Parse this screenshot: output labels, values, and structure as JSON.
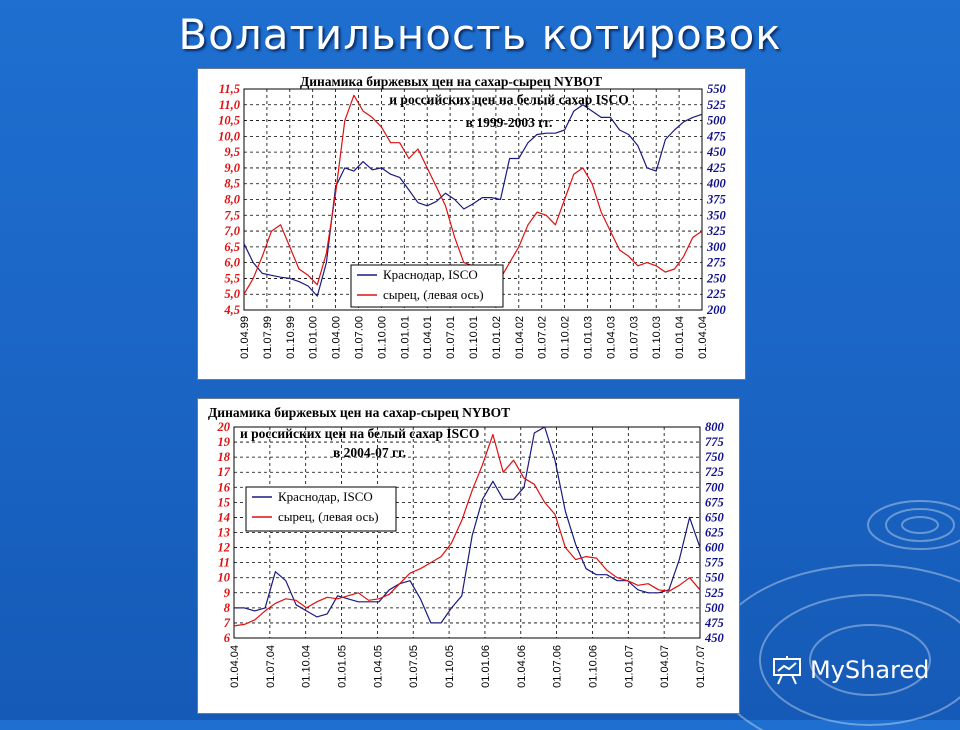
{
  "slide": {
    "title": "Волатильность котировок"
  },
  "logo": {
    "text": "MyShared"
  },
  "colors": {
    "background": "#1e6fd0",
    "krasnodar": "#1a1a80",
    "raw": "#e01010",
    "grid": "#000000"
  },
  "chart_data": [
    {
      "type": "line",
      "title": [
        "Динамика биржевых цен на сахар-сырец NYBOT",
        "и российских цен на белый сахар ISCO",
        "в 1999-2003 гг."
      ],
      "x_tick_labels": [
        "01.04.99",
        "01.07.99",
        "01.10.99",
        "01.01.00",
        "01.04.00",
        "01.07.00",
        "01.10.00",
        "01.01.01",
        "01.04.01",
        "01.07.01",
        "01.10.01",
        "01.01.02",
        "01.04.02",
        "01.07.02",
        "01.10.02",
        "01.01.03",
        "01.04.03",
        "01.07.03",
        "01.10.03",
        "01.01.04",
        "01.04.04"
      ],
      "y_left_ticks": [
        "4,5",
        "5,0",
        "5,5",
        "6,0",
        "6,5",
        "7,0",
        "7,5",
        "8,0",
        "8,5",
        "9,0",
        "9,5",
        "10,0",
        "10,5",
        "11,0",
        "11,5"
      ],
      "y_left_range": [
        4.5,
        11.5
      ],
      "y_right_ticks": [
        "200",
        "225",
        "250",
        "275",
        "300",
        "325",
        "350",
        "375",
        "400",
        "425",
        "450",
        "475",
        "500",
        "525",
        "550"
      ],
      "y_right_range": [
        200,
        550
      ],
      "grid": true,
      "legend_position": "bottom-left",
      "series": [
        {
          "name": "Краснодар, ISCO",
          "axis": "right",
          "color": "#1a1a80",
          "values": [
            305,
            275,
            258,
            255,
            252,
            250,
            245,
            238,
            222,
            275,
            395,
            425,
            420,
            435,
            422,
            425,
            415,
            410,
            390,
            370,
            365,
            372,
            385,
            375,
            360,
            368,
            378,
            378,
            375,
            440,
            440,
            465,
            478,
            480,
            480,
            485,
            515,
            525,
            515,
            505,
            505,
            485,
            478,
            460,
            425,
            420,
            470,
            485,
            498,
            505,
            510
          ]
        },
        {
          "name": "сырец, (левая ось)",
          "axis": "left",
          "color": "#e01010",
          "values": [
            5.0,
            5.5,
            6.2,
            7.0,
            7.2,
            6.5,
            5.8,
            5.6,
            5.3,
            6.3,
            8.2,
            10.5,
            11.3,
            10.8,
            10.6,
            10.3,
            9.8,
            9.8,
            9.3,
            9.6,
            9.0,
            8.4,
            7.8,
            6.8,
            6.0,
            5.9,
            5.6,
            5.6,
            5.5,
            6.0,
            6.5,
            7.2,
            7.6,
            7.5,
            7.2,
            8.0,
            8.8,
            9.0,
            8.5,
            7.6,
            7.0,
            6.4,
            6.2,
            5.9,
            6.0,
            5.9,
            5.7,
            5.8,
            6.2,
            6.8,
            7.0
          ]
        }
      ]
    },
    {
      "type": "line",
      "title": [
        "Динамика биржевых цен на сахар-сырец NYBOT",
        "и российских цен на белый сахар ISCO",
        "в 2004-07 гг."
      ],
      "x_tick_labels": [
        "01.04.04",
        "01.07.04",
        "01.10.04",
        "01.01.05",
        "01.04.05",
        "01.07.05",
        "01.10.05",
        "01.01.06",
        "01.04.06",
        "01.07.06",
        "01.10.06",
        "01.01.07",
        "01.04.07",
        "01.07.07"
      ],
      "y_left_ticks": [
        "6",
        "7",
        "8",
        "9",
        "10",
        "11",
        "12",
        "13",
        "14",
        "15",
        "16",
        "17",
        "18",
        "19",
        "20"
      ],
      "y_left_range": [
        6,
        20
      ],
      "y_right_ticks": [
        "450",
        "475",
        "500",
        "525",
        "550",
        "575",
        "600",
        "625",
        "650",
        "675",
        "700",
        "725",
        "750",
        "775",
        "800"
      ],
      "y_right_range": [
        450,
        800
      ],
      "grid": true,
      "legend_position": "top-left",
      "series": [
        {
          "name": "Краснодар, ISCO",
          "axis": "right",
          "color": "#1a1a80",
          "values": [
            500,
            500,
            495,
            500,
            560,
            545,
            505,
            495,
            485,
            490,
            520,
            515,
            510,
            510,
            510,
            530,
            540,
            545,
            515,
            475,
            475,
            500,
            520,
            620,
            680,
            710,
            680,
            680,
            700,
            790,
            800,
            745,
            660,
            605,
            565,
            555,
            555,
            545,
            545,
            530,
            525,
            525,
            530,
            580,
            650,
            600
          ]
        },
        {
          "name": "сырец, (левая ось)",
          "axis": "left",
          "color": "#e01010",
          "values": [
            6.8,
            6.9,
            7.2,
            7.8,
            8.3,
            8.6,
            8.5,
            8.0,
            8.4,
            8.7,
            8.6,
            8.8,
            9.0,
            8.5,
            8.6,
            8.9,
            9.6,
            10.3,
            10.6,
            11.0,
            11.4,
            12.3,
            13.8,
            15.8,
            17.5,
            19.5,
            17.0,
            17.8,
            16.6,
            16.2,
            15.0,
            14.2,
            12.0,
            11.2,
            11.4,
            11.3,
            10.5,
            10.0,
            9.8,
            9.5,
            9.6,
            9.2,
            9.1,
            9.5,
            10.0,
            9.2
          ]
        }
      ]
    }
  ]
}
